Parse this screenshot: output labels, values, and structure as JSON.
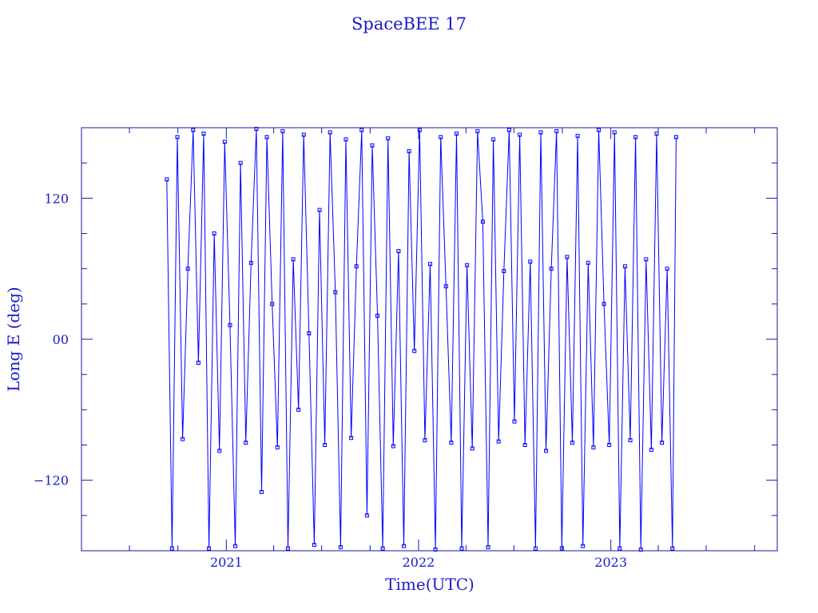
{
  "chart_data": {
    "type": "line",
    "title": "SpaceBEE 17",
    "xlabel": "Time(UTC)",
    "ylabel": "Long E (deg)",
    "xlim": [
      "2020-04-01",
      "2023-11-13"
    ],
    "ylim": [
      -180,
      180
    ],
    "xticks": [
      {
        "label": "2021",
        "date": "2021-01-01"
      },
      {
        "label": "2022",
        "date": "2022-01-01"
      },
      {
        "label": "2023",
        "date": "2023-01-01"
      }
    ],
    "yticks": [
      {
        "label": "120",
        "value": 120
      },
      {
        "label": "00",
        "value": 0
      },
      {
        "label": "−120",
        "value": -120
      }
    ],
    "grid": false,
    "marker": "square",
    "color": "#0000ff",
    "axis_color": "#1a1aa6",
    "x": [
      "2020-09-10",
      "2020-09-20",
      "2020-09-30",
      "2020-10-10",
      "2020-10-20",
      "2020-10-30",
      "2020-11-09",
      "2020-11-19",
      "2020-11-29",
      "2020-12-09",
      "2020-12-19",
      "2020-12-29",
      "2021-01-08",
      "2021-01-18",
      "2021-01-28",
      "2021-02-07",
      "2021-02-17",
      "2021-02-27",
      "2021-03-09",
      "2021-03-19",
      "2021-03-29",
      "2021-04-08",
      "2021-04-18",
      "2021-04-28",
      "2021-05-08",
      "2021-05-18",
      "2021-05-28",
      "2021-06-07",
      "2021-06-17",
      "2021-06-27",
      "2021-07-07",
      "2021-07-17",
      "2021-07-27",
      "2021-08-06",
      "2021-08-16",
      "2021-08-26",
      "2021-09-05",
      "2021-09-15",
      "2021-09-25",
      "2021-10-05",
      "2021-10-15",
      "2021-10-25",
      "2021-11-04",
      "2021-11-14",
      "2021-11-24",
      "2021-12-04",
      "2021-12-14",
      "2021-12-24",
      "2022-01-03",
      "2022-01-13",
      "2022-01-23",
      "2022-02-02",
      "2022-02-12",
      "2022-02-22",
      "2022-03-04",
      "2022-03-14",
      "2022-03-24",
      "2022-04-03",
      "2022-04-13",
      "2022-04-23",
      "2022-05-03",
      "2022-05-13",
      "2022-05-23",
      "2022-06-02",
      "2022-06-12",
      "2022-06-22",
      "2022-07-02",
      "2022-07-12",
      "2022-07-22",
      "2022-08-01",
      "2022-08-11",
      "2022-08-21",
      "2022-08-31",
      "2022-09-10",
      "2022-09-20",
      "2022-09-30",
      "2022-10-10",
      "2022-10-20",
      "2022-10-30",
      "2022-11-09",
      "2022-11-19",
      "2022-11-29",
      "2022-12-09",
      "2022-12-19",
      "2022-12-29",
      "2023-01-08",
      "2023-01-18",
      "2023-01-28",
      "2023-02-07",
      "2023-02-17",
      "2023-02-27",
      "2023-03-09",
      "2023-03-19",
      "2023-03-29",
      "2023-04-08",
      "2023-04-18",
      "2023-04-28",
      "2023-05-05"
    ],
    "y": [
      136,
      -178,
      172,
      -85,
      60,
      178,
      -20,
      175,
      -178,
      90,
      -95,
      168,
      12,
      -176,
      150,
      -88,
      65,
      179,
      -130,
      172,
      30,
      -92,
      177,
      -178,
      68,
      -60,
      174,
      5,
      -175,
      110,
      -90,
      176,
      40,
      -177,
      170,
      -84,
      62,
      178,
      -150,
      165,
      20,
      -178,
      171,
      -91,
      75,
      -176,
      160,
      -10,
      178,
      -86,
      64,
      -179,
      172,
      45,
      -88,
      175,
      -178,
      63,
      -93,
      177,
      100,
      -177,
      170,
      -87,
      58,
      178,
      -70,
      174,
      -90,
      66,
      -178,
      176,
      -95,
      60,
      177,
      -178,
      70,
      -88,
      173,
      -176,
      65,
      -92,
      178,
      30,
      -90,
      176,
      -178,
      62,
      -86,
      172,
      -179,
      68,
      -94,
      175,
      -88,
      60,
      -178,
      172
    ]
  }
}
